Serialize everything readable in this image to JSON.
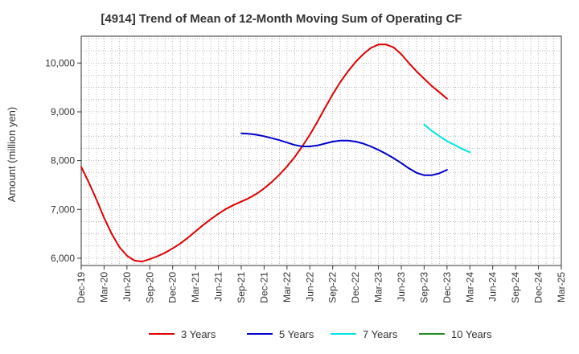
{
  "chart_data": {
    "type": "line",
    "title": "[4914]  Trend of Mean of 12-Month Moving Sum of Operating CF",
    "xlabel": "",
    "ylabel": "Amount (million yen)",
    "ylim": [
      5850,
      10550
    ],
    "yticks": [
      6000,
      7000,
      8000,
      9000,
      10000
    ],
    "ytick_labels": [
      "6,000",
      "7,000",
      "8,000",
      "9,000",
      "10,000"
    ],
    "x_start": "Dec-19",
    "months_total": 63,
    "xtick_labels": [
      "Dec-19",
      "Mar-20",
      "Jun-20",
      "Sep-20",
      "Dec-20",
      "Mar-21",
      "Jun-21",
      "Sep-21",
      "Dec-21",
      "Mar-22",
      "Jun-22",
      "Sep-22",
      "Dec-22",
      "Mar-23",
      "Jun-23",
      "Sep-23",
      "Dec-23",
      "Mar-24",
      "Jun-24",
      "Sep-24",
      "Dec-24",
      "Mar-25"
    ],
    "grid": true,
    "legend_position": "bottom",
    "series": [
      {
        "name": "3 Years",
        "color": "#e00000",
        "start_month": 0,
        "values": [
          7870,
          7550,
          7200,
          6830,
          6500,
          6230,
          6050,
          5950,
          5930,
          5980,
          6040,
          6110,
          6200,
          6300,
          6420,
          6550,
          6680,
          6800,
          6910,
          7010,
          7090,
          7160,
          7230,
          7320,
          7430,
          7560,
          7710,
          7880,
          8070,
          8290,
          8530,
          8800,
          9080,
          9360,
          9610,
          9830,
          10020,
          10180,
          10310,
          10380,
          10380,
          10320,
          10180,
          10000,
          9830,
          9680,
          9530,
          9400,
          9270
        ]
      },
      {
        "name": "5 Years",
        "color": "#0000cc",
        "start_month": 21,
        "values": [
          8560,
          8550,
          8530,
          8500,
          8460,
          8420,
          8370,
          8320,
          8290,
          8290,
          8310,
          8350,
          8390,
          8410,
          8410,
          8390,
          8350,
          8290,
          8220,
          8140,
          8050,
          7950,
          7840,
          7750,
          7700,
          7700,
          7740,
          7810
        ]
      },
      {
        "name": "7 Years",
        "color": "#00e5e5",
        "start_month": 45,
        "values": [
          8740,
          8610,
          8500,
          8400,
          8320,
          8240,
          8170
        ]
      },
      {
        "name": "10 Years",
        "color": "#228b22",
        "start_month": 0,
        "values": []
      }
    ]
  }
}
